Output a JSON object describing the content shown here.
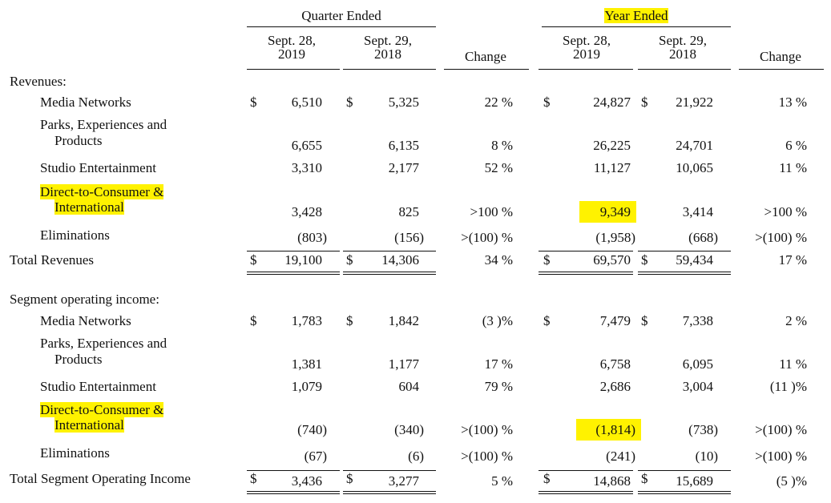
{
  "headers": {
    "quarter_ended": "Quarter Ended",
    "year_ended": "Year Ended",
    "q_col1": [
      "Sept. 28,",
      "2019"
    ],
    "q_col2": [
      "Sept. 29,",
      "2018"
    ],
    "y_col1": [
      "Sept. 28,",
      "2019"
    ],
    "y_col2": [
      "Sept. 29,",
      "2018"
    ],
    "change": "Change"
  },
  "currency": "$",
  "sections": {
    "revenues": "Revenues:",
    "segment": "Segment operating income:"
  },
  "rows": [
    {
      "label": "Media Networks",
      "q19": "6,510",
      "q18": "5,325",
      "qchg": "22 %",
      "y19": "24,827",
      "y18": "21,922",
      "ychg": "13 %"
    },
    {
      "label": [
        "Parks, Experiences and",
        "Products"
      ],
      "q19": "6,655",
      "q18": "6,135",
      "qchg": "8 %",
      "y19": "26,225",
      "y18": "24,701",
      "ychg": "6 %"
    },
    {
      "label": "Studio Entertainment",
      "q19": "3,310",
      "q18": "2,177",
      "qchg": "52 %",
      "y19": "11,127",
      "y18": "10,065",
      "ychg": "11 %"
    },
    {
      "label": [
        "Direct-to-Consumer &",
        "International"
      ],
      "q19": "3,428",
      "q18": "825",
      "qchg": ">100 %",
      "y19": "9,349",
      "y18": "3,414",
      "ychg": ">100 %"
    },
    {
      "label": "Eliminations",
      "q19": "(803)",
      "q18": "(156)",
      "qchg": ">(100) %",
      "y19": "(1,958)",
      "y18": "(668)",
      "ychg": ">(100) %"
    },
    {
      "label": "Total Revenues",
      "q19": "19,100",
      "q18": "14,306",
      "qchg": "34 %",
      "y19": "69,570",
      "y18": "59,434",
      "ychg": "17 %"
    },
    {
      "label": "Media Networks",
      "q19": "1,783",
      "q18": "1,842",
      "qchg": "(3 )%",
      "y19": "7,479",
      "y18": "7,338",
      "ychg": "2 %"
    },
    {
      "label": [
        "Parks, Experiences and",
        "Products"
      ],
      "q19": "1,381",
      "q18": "1,177",
      "qchg": "17 %",
      "y19": "6,758",
      "y18": "6,095",
      "ychg": "11 %"
    },
    {
      "label": "Studio Entertainment",
      "q19": "1,079",
      "q18": "604",
      "qchg": "79 %",
      "y19": "2,686",
      "y18": "3,004",
      "ychg": "(11 )%"
    },
    {
      "label": [
        "Direct-to-Consumer &",
        "International"
      ],
      "q19": "(740)",
      "q18": "(340)",
      "qchg": ">(100) %",
      "y19": "(1,814)",
      "y18": "(738)",
      "ychg": ">(100) %"
    },
    {
      "label": "Eliminations",
      "q19": "(67)",
      "q18": "(6)",
      "qchg": ">(100) %",
      "y19": "(241)",
      "y18": "(10)",
      "ychg": ">(100) %"
    },
    {
      "label": "Total Segment Operating Income",
      "q19": "3,436",
      "q18": "3,277",
      "qchg": "5 %",
      "y19": "14,868",
      "y18": "15,689",
      "ychg": "(5 )%"
    }
  ],
  "highlight_color": "#fff200"
}
